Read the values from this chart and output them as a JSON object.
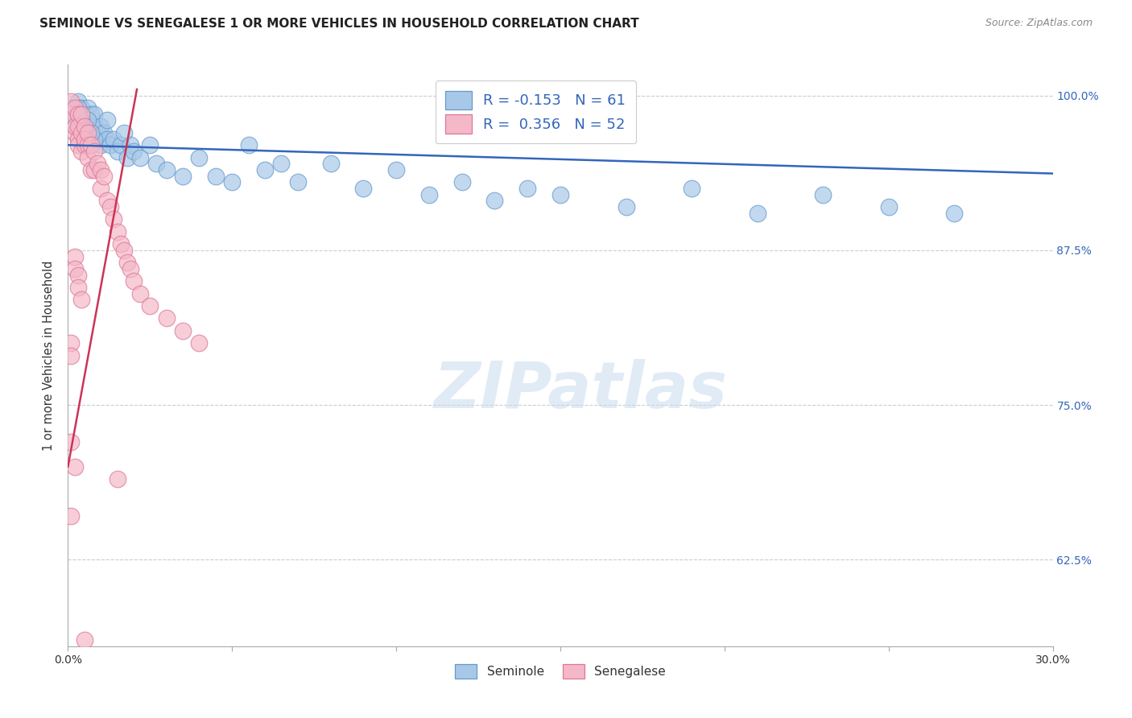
{
  "title": "SEMINOLE VS SENEGALESE 1 OR MORE VEHICLES IN HOUSEHOLD CORRELATION CHART",
  "source": "Source: ZipAtlas.com",
  "ylabel": "1 or more Vehicles in Household",
  "xlim": [
    0.0,
    0.3
  ],
  "ylim": [
    0.555,
    1.025
  ],
  "x_tick_positions": [
    0.0,
    0.05,
    0.1,
    0.15,
    0.2,
    0.25,
    0.3
  ],
  "x_tick_labels": [
    "0.0%",
    "",
    "",
    "",
    "",
    "",
    "30.0%"
  ],
  "y_tick_positions": [
    0.625,
    0.75,
    0.875,
    1.0
  ],
  "y_tick_labels": [
    "62.5%",
    "75.0%",
    "87.5%",
    "100.0%"
  ],
  "seminole_fill": "#A8C8E8",
  "seminole_edge": "#6699CC",
  "senegalese_fill": "#F4B8C8",
  "senegalese_edge": "#DD7799",
  "trend_blue": "#3366BB",
  "trend_pink": "#CC3355",
  "legend_R_blue": "-0.153",
  "legend_N_blue": "61",
  "legend_R_pink": "0.356",
  "legend_N_pink": "52",
  "seminole_x": [
    0.001,
    0.002,
    0.002,
    0.003,
    0.003,
    0.004,
    0.004,
    0.005,
    0.005,
    0.006,
    0.006,
    0.007,
    0.007,
    0.008,
    0.008,
    0.009,
    0.01,
    0.01,
    0.011,
    0.012,
    0.012,
    0.013,
    0.014,
    0.015,
    0.016,
    0.017,
    0.018,
    0.019,
    0.02,
    0.022,
    0.025,
    0.027,
    0.03,
    0.035,
    0.04,
    0.045,
    0.05,
    0.055,
    0.06,
    0.065,
    0.07,
    0.08,
    0.09,
    0.1,
    0.11,
    0.12,
    0.13,
    0.14,
    0.15,
    0.17,
    0.19,
    0.21,
    0.23,
    0.25,
    0.27,
    0.005,
    0.006,
    0.008,
    0.003,
    0.004,
    0.007
  ],
  "seminole_y": [
    0.99,
    0.985,
    0.975,
    0.995,
    0.985,
    0.99,
    0.975,
    0.985,
    0.97,
    0.99,
    0.975,
    0.985,
    0.965,
    0.975,
    0.985,
    0.97,
    0.975,
    0.96,
    0.97,
    0.965,
    0.98,
    0.96,
    0.965,
    0.955,
    0.96,
    0.97,
    0.95,
    0.96,
    0.955,
    0.95,
    0.96,
    0.945,
    0.94,
    0.935,
    0.95,
    0.935,
    0.93,
    0.96,
    0.94,
    0.945,
    0.93,
    0.945,
    0.925,
    0.94,
    0.92,
    0.93,
    0.915,
    0.925,
    0.92,
    0.91,
    0.925,
    0.905,
    0.92,
    0.91,
    0.905,
    0.975,
    0.98,
    0.965,
    0.99,
    0.98,
    0.97
  ],
  "senegalese_x": [
    0.001,
    0.001,
    0.002,
    0.002,
    0.002,
    0.003,
    0.003,
    0.003,
    0.003,
    0.004,
    0.004,
    0.004,
    0.005,
    0.005,
    0.005,
    0.006,
    0.006,
    0.006,
    0.007,
    0.007,
    0.008,
    0.008,
    0.009,
    0.01,
    0.01,
    0.011,
    0.012,
    0.013,
    0.014,
    0.015,
    0.016,
    0.017,
    0.018,
    0.019,
    0.02,
    0.022,
    0.025,
    0.03,
    0.035,
    0.04,
    0.002,
    0.002,
    0.003,
    0.003,
    0.004,
    0.001,
    0.001,
    0.001,
    0.002,
    0.001,
    0.015,
    0.005
  ],
  "senegalese_y": [
    0.995,
    0.985,
    0.99,
    0.97,
    0.975,
    0.985,
    0.965,
    0.975,
    0.96,
    0.985,
    0.97,
    0.955,
    0.975,
    0.96,
    0.965,
    0.96,
    0.97,
    0.95,
    0.96,
    0.94,
    0.955,
    0.94,
    0.945,
    0.94,
    0.925,
    0.935,
    0.915,
    0.91,
    0.9,
    0.89,
    0.88,
    0.875,
    0.865,
    0.86,
    0.85,
    0.84,
    0.83,
    0.82,
    0.81,
    0.8,
    0.87,
    0.86,
    0.855,
    0.845,
    0.835,
    0.8,
    0.79,
    0.72,
    0.7,
    0.66,
    0.69,
    0.56
  ],
  "sem_trend_x": [
    0.0,
    0.3
  ],
  "sem_trend_y": [
    0.96,
    0.937
  ],
  "sen_trend_x": [
    0.0,
    0.021
  ],
  "sen_trend_y": [
    0.7,
    1.005
  ]
}
